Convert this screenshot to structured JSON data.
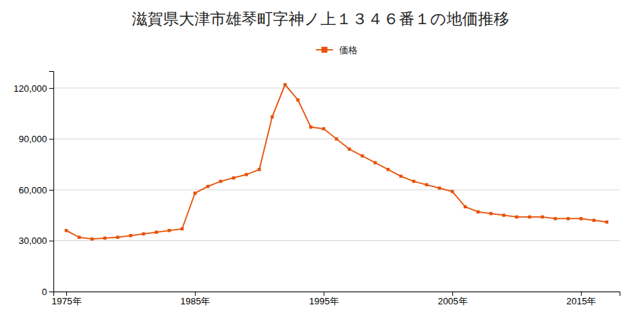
{
  "chart_data": {
    "type": "line",
    "title": "滋賀県大津市雄琴町字神ノ上１３４６番１の地価推移",
    "x": [
      1975,
      1976,
      1977,
      1978,
      1979,
      1980,
      1981,
      1982,
      1983,
      1984,
      1985,
      1986,
      1987,
      1988,
      1989,
      1990,
      1991,
      1992,
      1993,
      1994,
      1995,
      1996,
      1997,
      1998,
      1999,
      2000,
      2001,
      2002,
      2003,
      2004,
      2005,
      2006,
      2007,
      2008,
      2009,
      2010,
      2011,
      2012,
      2013,
      2014,
      2015,
      2016,
      2017
    ],
    "series": [
      {
        "name": "価格",
        "color": "#e8520a",
        "marker": "square",
        "values": [
          36000,
          32000,
          31000,
          31500,
          32000,
          33000,
          34000,
          35000,
          36000,
          37000,
          58000,
          62000,
          65000,
          67000,
          69000,
          72000,
          103000,
          122000,
          113000,
          97000,
          96000,
          90000,
          84000,
          80000,
          76000,
          72000,
          68000,
          65000,
          63000,
          61000,
          59000,
          50000,
          47000,
          46000,
          45000,
          44000,
          44000,
          44000,
          43000,
          43000,
          43000,
          42000,
          41000
        ]
      }
    ],
    "xlim": [
      1974,
      2018
    ],
    "xticks": [
      {
        "value": 1975,
        "label": "1975年"
      },
      {
        "value": 1985,
        "label": "1985年"
      },
      {
        "value": 1995,
        "label": "1995年"
      },
      {
        "value": 2005,
        "label": "2005年"
      },
      {
        "value": 2015,
        "label": "2015年"
      }
    ],
    "ylim": [
      0,
      130000
    ],
    "yticks": [
      0,
      {
        "value": 30000,
        "label": "30,000"
      },
      {
        "value": 60000,
        "label": "60,000"
      },
      {
        "value": 90000,
        "label": "90,000"
      },
      {
        "value": 120000,
        "label": "120,000"
      }
    ],
    "grid": true,
    "legend": "top"
  }
}
